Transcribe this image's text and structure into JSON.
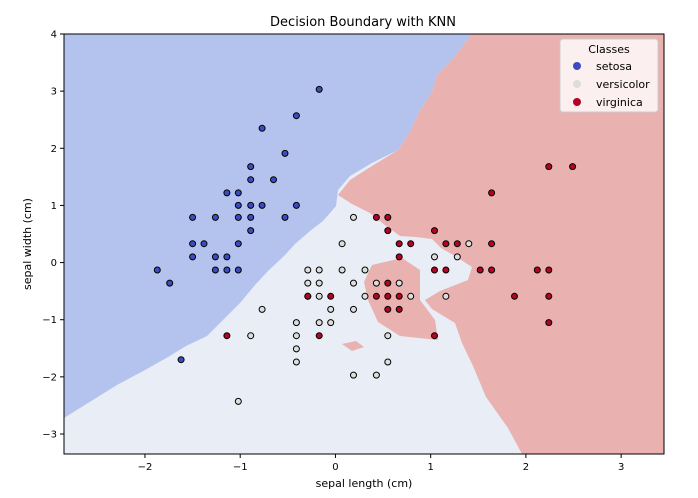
{
  "chart_data": {
    "type": "scatter",
    "title": "Decision Boundary with KNN",
    "xlabel": "sepal length (cm)",
    "ylabel": "sepal width (cm)",
    "xlim": [
      -2.85,
      3.45
    ],
    "ylim": [
      -3.35,
      4.0
    ],
    "xticks": [
      -2,
      -1,
      0,
      1,
      2,
      3
    ],
    "yticks": [
      -3,
      -2,
      -1,
      0,
      1,
      2,
      3,
      4
    ],
    "grid": false,
    "legend": {
      "title": "Classes",
      "location": "top-right"
    },
    "regions": [
      {
        "name": "setosa",
        "color": "#b4c3ee"
      },
      {
        "name": "versicolor",
        "color": "#e8edf6"
      },
      {
        "name": "virginica",
        "color": "#e9b1b0"
      }
    ],
    "series": [
      {
        "name": "setosa",
        "color": "#3b4cc0",
        "points": [
          [
            -0.17,
            3.03
          ],
          [
            -0.41,
            2.57
          ],
          [
            -0.77,
            2.35
          ],
          [
            -0.53,
            1.91
          ],
          [
            -0.89,
            1.68
          ],
          [
            -0.65,
            1.45
          ],
          [
            -0.89,
            1.45
          ],
          [
            -1.14,
            1.22
          ],
          [
            -1.02,
            1.22
          ],
          [
            -0.41,
            1.0
          ],
          [
            -0.77,
            1.0
          ],
          [
            -0.89,
            1.0
          ],
          [
            -1.02,
            1.0
          ],
          [
            -1.5,
            0.79
          ],
          [
            -1.26,
            0.79
          ],
          [
            -1.02,
            0.79
          ],
          [
            -0.89,
            0.79
          ],
          [
            -0.53,
            0.79
          ],
          [
            -0.89,
            0.56
          ],
          [
            -1.5,
            0.33
          ],
          [
            -1.38,
            0.33
          ],
          [
            -1.02,
            0.33
          ],
          [
            -1.5,
            0.1
          ],
          [
            -1.26,
            0.1
          ],
          [
            -1.14,
            0.1
          ],
          [
            -1.87,
            -0.13
          ],
          [
            -1.26,
            -0.13
          ],
          [
            -1.14,
            -0.13
          ],
          [
            -1.02,
            -0.13
          ],
          [
            -1.74,
            -0.36
          ],
          [
            -1.62,
            -1.7
          ]
        ]
      },
      {
        "name": "versicolor",
        "color": "#dddddd",
        "points": [
          [
            0.19,
            0.79
          ],
          [
            0.07,
            0.33
          ],
          [
            1.28,
            0.1
          ],
          [
            1.4,
            0.33
          ],
          [
            1.04,
            0.1
          ],
          [
            0.31,
            -0.13
          ],
          [
            0.07,
            -0.13
          ],
          [
            -0.17,
            -0.13
          ],
          [
            -0.29,
            -0.13
          ],
          [
            0.19,
            -0.36
          ],
          [
            -0.29,
            -0.36
          ],
          [
            -0.17,
            -0.36
          ],
          [
            0.43,
            -0.36
          ],
          [
            0.67,
            -0.36
          ],
          [
            -0.29,
            -0.59
          ],
          [
            -0.17,
            -0.59
          ],
          [
            0.31,
            -0.59
          ],
          [
            0.79,
            -0.59
          ],
          [
            1.16,
            -0.59
          ],
          [
            -0.05,
            -0.82
          ],
          [
            0.19,
            -0.82
          ],
          [
            -0.77,
            -0.82
          ],
          [
            -0.41,
            -1.05
          ],
          [
            -0.17,
            -1.05
          ],
          [
            -0.05,
            -1.05
          ],
          [
            -0.41,
            -1.28
          ],
          [
            -0.89,
            -1.28
          ],
          [
            0.55,
            -1.28
          ],
          [
            -0.41,
            -1.51
          ],
          [
            -0.41,
            -1.74
          ],
          [
            0.55,
            -1.74
          ],
          [
            0.19,
            -1.97
          ],
          [
            0.43,
            -1.97
          ],
          [
            -1.02,
            -2.43
          ]
        ]
      },
      {
        "name": "virginica",
        "color": "#b40426",
        "points": [
          [
            2.24,
            1.68
          ],
          [
            2.49,
            1.68
          ],
          [
            1.64,
            1.22
          ],
          [
            0.43,
            0.79
          ],
          [
            0.55,
            0.79
          ],
          [
            1.04,
            0.56
          ],
          [
            0.55,
            0.56
          ],
          [
            0.67,
            0.33
          ],
          [
            0.79,
            0.33
          ],
          [
            1.16,
            0.33
          ],
          [
            1.28,
            0.33
          ],
          [
            1.64,
            0.33
          ],
          [
            0.67,
            0.1
          ],
          [
            1.04,
            -0.13
          ],
          [
            1.16,
            -0.13
          ],
          [
            1.52,
            -0.13
          ],
          [
            1.64,
            -0.13
          ],
          [
            2.12,
            -0.13
          ],
          [
            2.24,
            -0.13
          ],
          [
            0.55,
            -0.36
          ],
          [
            -0.29,
            -0.59
          ],
          [
            0.43,
            -0.59
          ],
          [
            0.55,
            -0.59
          ],
          [
            0.67,
            -0.59
          ],
          [
            1.88,
            -0.59
          ],
          [
            2.24,
            -0.59
          ],
          [
            -0.05,
            -0.59
          ],
          [
            0.55,
            -0.82
          ],
          [
            0.67,
            -0.82
          ],
          [
            2.24,
            -1.05
          ],
          [
            -1.14,
            -1.28
          ],
          [
            -0.17,
            -1.28
          ],
          [
            1.04,
            -1.28
          ]
        ]
      }
    ]
  }
}
